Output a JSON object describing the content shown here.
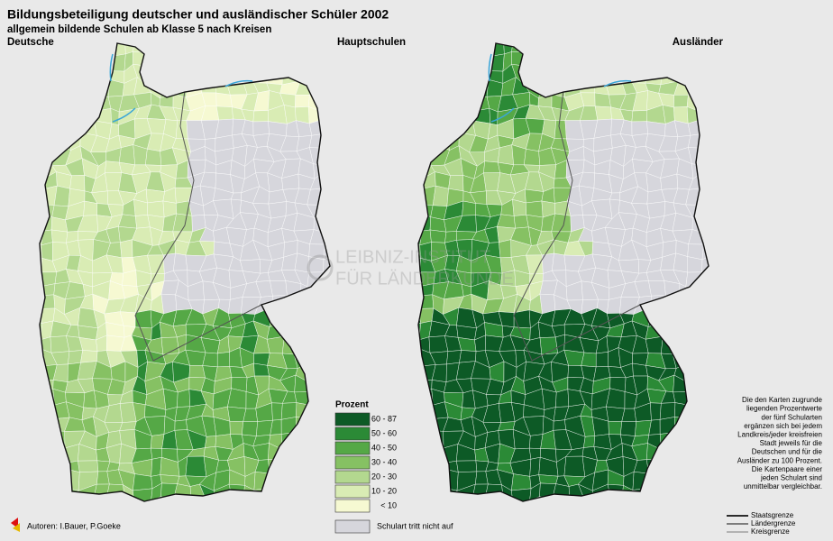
{
  "header": {
    "title": "Bildungsbeteiligung deutscher und ausländischer Schüler 2002",
    "subtitle": "allgemein bildende Schulen ab Klasse 5 nach Kreisen"
  },
  "maps": [
    {
      "label": "Deutsche"
    },
    {
      "label": "Ausländer"
    }
  ],
  "school_type": "Hauptschulen",
  "watermark": [
    "LEIBNIZ-INSTITUT",
    "FÜR LÄNDERKUNDE"
  ],
  "legend": {
    "title": "Prozent",
    "classes": [
      {
        "label": "60 - 87",
        "color": "#0d5a26"
      },
      {
        "label": "50 - 60",
        "color": "#2b8a36"
      },
      {
        "label": "40 - 50",
        "color": "#55a846"
      },
      {
        "label": "30 - 40",
        "color": "#86c163"
      },
      {
        "label": "20 - 30",
        "color": "#b3d88f"
      },
      {
        "label": "10 - 20",
        "color": "#d9ecb4"
      },
      {
        "label": "< 10",
        "color": "#f6f9d2"
      }
    ],
    "not_present": {
      "label": "Schulart tritt nicht auf",
      "color": "#d6d6dc"
    }
  },
  "note": [
    "Die den Karten zugrunde",
    "liegenden Prozentwerte",
    "der fünf Schularten",
    "ergänzen sich bei jedem",
    "Landkreis/jeder kreisfreien",
    "Stadt jeweils für die",
    "Deutschen und für die",
    "Ausländer zu 100 Prozent.",
    "Die Kartenpaare einer",
    "jeden Schulart sind",
    "unmittelbar vergleichbar."
  ],
  "boundaries": [
    "Staatsgrenze",
    "Ländergrenze",
    "Kreisgrenze"
  ],
  "authors": "Autoren: I.Bauer, P.Goeke"
}
